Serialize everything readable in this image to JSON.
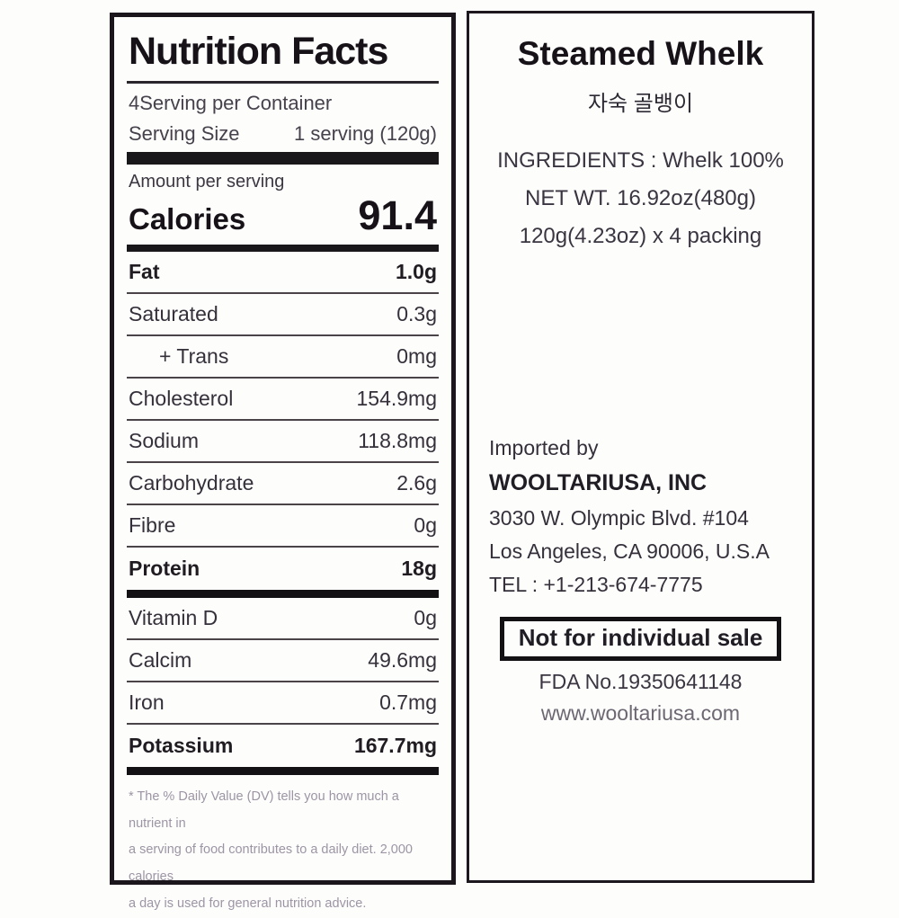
{
  "left_panel": {
    "title": "Nutrition Facts",
    "servings_per_container": "4Serving per Container",
    "serving_size_label": "Serving Size",
    "serving_size_value": "1 serving (120g)",
    "amount_per_serving": "Amount per serving",
    "calories_label": "Calories",
    "calories_value": "91.4",
    "nutrients": [
      {
        "label": "Fat",
        "value": "1.0g"
      },
      {
        "label": "Saturated",
        "value": "0.3g"
      },
      {
        "label": "+ Trans",
        "value": "0mg"
      },
      {
        "label": "Cholesterol",
        "value": "154.9mg"
      },
      {
        "label": "Sodium",
        "value": "118.8mg"
      },
      {
        "label": "Carbohydrate",
        "value": "2.6g"
      },
      {
        "label": "Fibre",
        "value": "0g"
      },
      {
        "label": "Protein",
        "value": "18g"
      },
      {
        "label": "Vitamin D",
        "value": "0g"
      },
      {
        "label": "Calcim",
        "value": "49.6mg"
      },
      {
        "label": "Iron",
        "value": "0.7mg"
      },
      {
        "label": "Potassium",
        "value": "167.7mg"
      }
    ],
    "footnote_lines": [
      "* The % Daily Value (DV) tells you how much a nutrient in",
      "a serving of food contributes to a daily diet. 2,000 calories",
      "a day is used for general nutrition advice."
    ]
  },
  "right_panel": {
    "title": "Steamed Whelk",
    "subtitle_korean": "자숙 골뱅이",
    "ingredients": "INGREDIENTS : Whelk 100%",
    "net_weight": "NET WT. 16.92oz(480g)",
    "packing": "120g(4.23oz) x 4 packing",
    "imported_by": "Imported by",
    "importer_name": "WOOLTARIUSA, INC",
    "address_line1": "3030 W. Olympic Blvd. #104",
    "address_line2": "Los Angeles, CA 90006, U.S.A",
    "tel": "TEL : +1-213-674-7775",
    "not_for_individual_sale": "Not for individual sale",
    "fda_no": "FDA No.19350641148",
    "website": "www.wooltariusa.com"
  },
  "colors": {
    "ink": "#1a161b",
    "body_text": "#35303a",
    "footnote": "#9d95a4",
    "background": "#fdfdfc"
  }
}
